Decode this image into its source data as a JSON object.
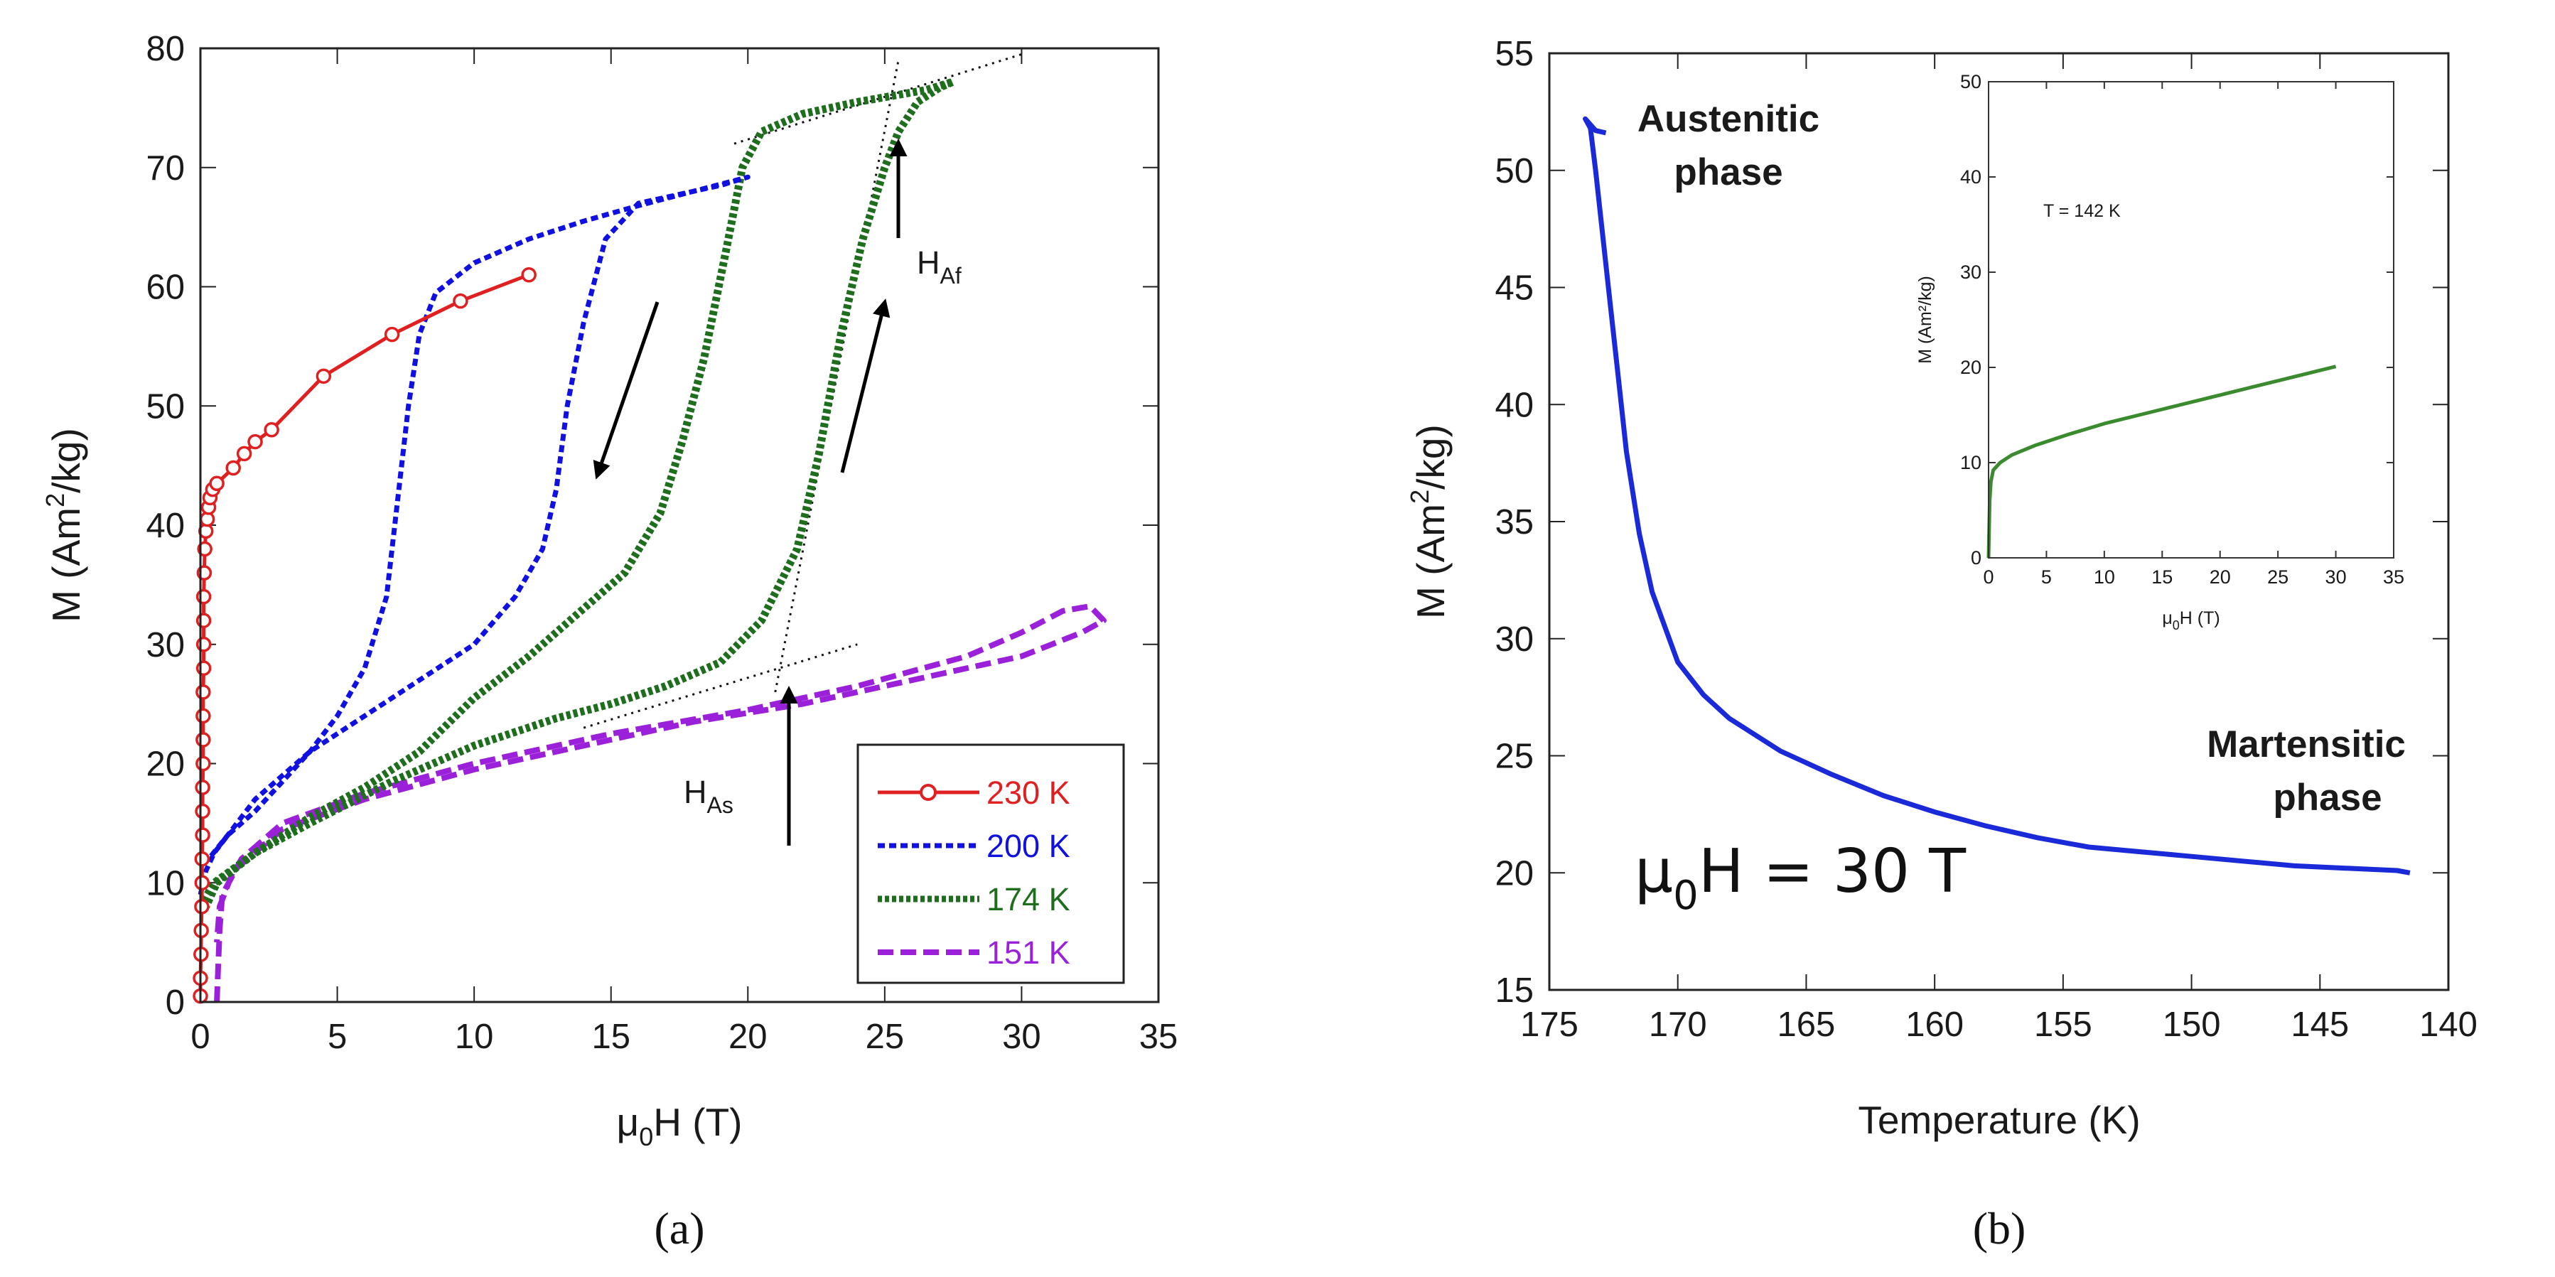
{
  "chart_data": [
    {
      "type": "line",
      "panel_label": "(a)",
      "xlabel_prefix": "μ",
      "xlabel_sub": "0",
      "xlabel_suffix": "H (T)",
      "ylabel_prefix": "M (Am",
      "ylabel_sup": "2",
      "ylabel_suffix": "/kg)",
      "xlim": [
        0,
        35
      ],
      "ylim": [
        0,
        80
      ],
      "xticks": [
        0,
        5,
        10,
        15,
        20,
        25,
        30,
        35
      ],
      "yticks": [
        0,
        10,
        20,
        30,
        40,
        50,
        60,
        70,
        80
      ],
      "legend": {
        "position": "bottom-right"
      },
      "series": [
        {
          "name": "230 K",
          "color": "#e02020",
          "style": "solid-circles",
          "points": [
            [
              0,
              0.5
            ],
            [
              0,
              2
            ],
            [
              0.02,
              4
            ],
            [
              0.03,
              6
            ],
            [
              0.05,
              8
            ],
            [
              0.06,
              10
            ],
            [
              0.06,
              12
            ],
            [
              0.08,
              14
            ],
            [
              0.08,
              16
            ],
            [
              0.08,
              18
            ],
            [
              0.1,
              20
            ],
            [
              0.1,
              22
            ],
            [
              0.1,
              24
            ],
            [
              0.1,
              26
            ],
            [
              0.12,
              28
            ],
            [
              0.12,
              30
            ],
            [
              0.12,
              32
            ],
            [
              0.12,
              34
            ],
            [
              0.14,
              36
            ],
            [
              0.16,
              38
            ],
            [
              0.2,
              39.5
            ],
            [
              0.25,
              40.5
            ],
            [
              0.3,
              41.5
            ],
            [
              0.35,
              42.3
            ],
            [
              0.45,
              43
            ],
            [
              0.6,
              43.5
            ],
            [
              1.2,
              44.8
            ],
            [
              1.6,
              46
            ],
            [
              2,
              47
            ],
            [
              2.6,
              48
            ],
            [
              4.5,
              52.5
            ],
            [
              7,
              56
            ],
            [
              9.5,
              58.8
            ],
            [
              12,
              61
            ]
          ]
        },
        {
          "name": "200 K",
          "color": "#1010e0",
          "style": "dotted",
          "points": [
            [
              0,
              9
            ],
            [
              0.2,
              11
            ],
            [
              0.5,
              12.5
            ],
            [
              1,
              14
            ],
            [
              2,
              16
            ],
            [
              3,
              18.5
            ],
            [
              4,
              21
            ],
            [
              5,
              24
            ],
            [
              6,
              28
            ],
            [
              6.8,
              34
            ],
            [
              7.2,
              42
            ],
            [
              7.6,
              50
            ],
            [
              8,
              56
            ],
            [
              8.6,
              59.5
            ],
            [
              10,
              62
            ],
            [
              12,
              64
            ],
            [
              14,
              65.5
            ],
            [
              16,
              66.8
            ],
            [
              18,
              68
            ],
            [
              20,
              69.2
            ],
            [
              19,
              68.5
            ],
            [
              16,
              67
            ],
            [
              14.8,
              64
            ],
            [
              14,
              57
            ],
            [
              13.4,
              50
            ],
            [
              13,
              43
            ],
            [
              12.5,
              38
            ],
            [
              11.5,
              34
            ],
            [
              10,
              30
            ],
            [
              8,
              27
            ],
            [
              6,
              24
            ],
            [
              4,
              21
            ],
            [
              2,
              17
            ],
            [
              1,
              14
            ],
            [
              0.3,
              12
            ]
          ]
        },
        {
          "name": "174 K",
          "color": "#1e6e1e",
          "style": "dotted-thick",
          "points": [
            [
              0,
              8
            ],
            [
              0.5,
              10
            ],
            [
              2,
              12.5
            ],
            [
              4,
              15
            ],
            [
              7,
              18.5
            ],
            [
              10,
              21.5
            ],
            [
              13,
              23.8
            ],
            [
              15,
              25
            ],
            [
              17,
              26.5
            ],
            [
              19,
              28.5
            ],
            [
              20.5,
              32
            ],
            [
              21.8,
              38
            ],
            [
              22.6,
              46
            ],
            [
              23.4,
              56
            ],
            [
              24.2,
              64
            ],
            [
              25,
              70
            ],
            [
              25.5,
              73
            ],
            [
              26.2,
              75.5
            ],
            [
              27,
              76.7
            ],
            [
              27.5,
              77.2
            ],
            [
              26.5,
              76.5
            ],
            [
              24,
              75.5
            ],
            [
              22,
              74.5
            ],
            [
              20.5,
              73
            ],
            [
              19.8,
              70
            ],
            [
              19.2,
              63
            ],
            [
              18.4,
              54
            ],
            [
              17.6,
              47
            ],
            [
              16.8,
              41
            ],
            [
              15.5,
              36
            ],
            [
              14,
              33
            ],
            [
              12,
              29
            ],
            [
              10,
              25.5
            ],
            [
              8,
              21
            ],
            [
              6,
              18
            ],
            [
              4,
              15.5
            ],
            [
              2,
              12.5
            ],
            [
              0.6,
              10
            ],
            [
              0.2,
              8
            ]
          ]
        },
        {
          "name": "151 K",
          "color": "#9b20d9",
          "style": "dashed",
          "points": [
            [
              0.6,
              0
            ],
            [
              0.65,
              3
            ],
            [
              0.7,
              6
            ],
            [
              0.8,
              9
            ],
            [
              1.5,
              12
            ],
            [
              3,
              15
            ],
            [
              6,
              17.5
            ],
            [
              10,
              20
            ],
            [
              15,
              22.5
            ],
            [
              20,
              24.5
            ],
            [
              24,
              26.5
            ],
            [
              28,
              29
            ],
            [
              30,
              31
            ],
            [
              31.5,
              32.8
            ],
            [
              32.5,
              33.2
            ],
            [
              33,
              32
            ],
            [
              32.2,
              31
            ],
            [
              30,
              29
            ],
            [
              26,
              27
            ],
            [
              22,
              25
            ],
            [
              18,
              23.5
            ],
            [
              14,
              21.5
            ],
            [
              10,
              19.5
            ],
            [
              6,
              17
            ],
            [
              3,
              14.5
            ],
            [
              1.2,
              11
            ],
            [
              0.7,
              8
            ],
            [
              0.6,
              5
            ]
          ]
        }
      ],
      "guide_lines": [
        [
          [
            19.5,
            72
          ],
          [
            30,
            79.5
          ]
        ],
        [
          [
            21,
            26
          ],
          [
            25.5,
            79
          ]
        ],
        [
          [
            14,
            23
          ],
          [
            24,
            30
          ]
        ]
      ],
      "annotations": {
        "haf": {
          "main": "H",
          "sub": "Af"
        },
        "has": {
          "main": "H",
          "sub": "As"
        }
      }
    },
    {
      "type": "line",
      "panel_label": "(b)",
      "xlabel": "Temperature (K)",
      "ylabel_prefix": "M (Am",
      "ylabel_sup": "2",
      "ylabel_suffix": "/kg)",
      "xlim": [
        175,
        140
      ],
      "ylim": [
        15,
        55
      ],
      "xticks": [
        175,
        170,
        165,
        160,
        155,
        150,
        145,
        140
      ],
      "yticks": [
        15,
        20,
        25,
        30,
        35,
        40,
        45,
        50,
        55
      ],
      "series": [
        {
          "name": "μ0H = 30 T",
          "color": "#1a2ad8",
          "points": [
            [
              172.8,
              51.6
            ],
            [
              173.2,
              51.7
            ],
            [
              173.6,
              52.2
            ],
            [
              173.4,
              51.8
            ],
            [
              173.2,
              50
            ],
            [
              173,
              48
            ],
            [
              172.7,
              45
            ],
            [
              172.3,
              41
            ],
            [
              172,
              38
            ],
            [
              171.5,
              34.5
            ],
            [
              171,
              32
            ],
            [
              170,
              29
            ],
            [
              169,
              27.6
            ],
            [
              168,
              26.6
            ],
            [
              166,
              25.2
            ],
            [
              164,
              24.2
            ],
            [
              162,
              23.3
            ],
            [
              160,
              22.6
            ],
            [
              158,
              22
            ],
            [
              156,
              21.5
            ],
            [
              154,
              21.1
            ],
            [
              152,
              20.9
            ],
            [
              150,
              20.7
            ],
            [
              148,
              20.5
            ],
            [
              146,
              20.3
            ],
            [
              144,
              20.2
            ],
            [
              142,
              20.1
            ],
            [
              141.5,
              20
            ]
          ]
        }
      ],
      "text": {
        "austenitic_1": "Austenitic",
        "austenitic_2": "phase",
        "martensitic_1": "Martensitic",
        "martensitic_2": "phase",
        "field_prefix": "μ",
        "field_sub": "0",
        "field_suffix": "H = 30 T"
      },
      "inset": {
        "type": "line",
        "title": "T = 142 K",
        "xlabel_prefix": "μ",
        "xlabel_sub": "0",
        "xlabel_suffix": "H (T)",
        "ylabel": "M (Am²/kg)",
        "xlim": [
          0,
          35
        ],
        "ylim": [
          0,
          50
        ],
        "xticks": [
          0,
          5,
          10,
          15,
          20,
          25,
          30,
          35
        ],
        "yticks": [
          0,
          10,
          20,
          30,
          40,
          50
        ],
        "color": "#3a8a2e",
        "points": [
          [
            0,
            0
          ],
          [
            0.05,
            3
          ],
          [
            0.1,
            6
          ],
          [
            0.2,
            8
          ],
          [
            0.4,
            9.2
          ],
          [
            1,
            10
          ],
          [
            2,
            10.8
          ],
          [
            4,
            11.8
          ],
          [
            7,
            13
          ],
          [
            10,
            14.1
          ],
          [
            15,
            15.6
          ],
          [
            20,
            17.1
          ],
          [
            25,
            18.6
          ],
          [
            30,
            20.1
          ]
        ]
      }
    }
  ]
}
